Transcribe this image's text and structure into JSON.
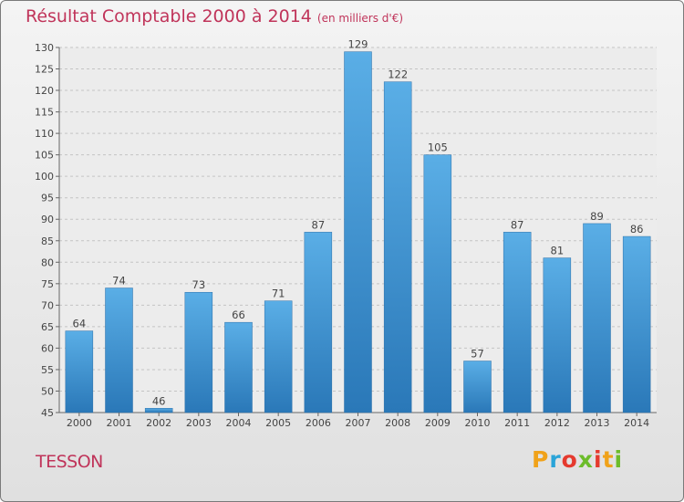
{
  "header": {
    "title": "Résultat Comptable 2000 à 2014",
    "unit": "(en milliers d'€)"
  },
  "commune": "TESSON",
  "logo": {
    "text": "Proxiti"
  },
  "colors": {
    "title": "#c0345a",
    "bar_top": "#5aaee6",
    "bar_bottom": "#2a78b8"
  },
  "chart_data": {
    "type": "bar",
    "title": "Résultat Comptable 2000 à 2014",
    "subtitle": "(en milliers d'€)",
    "xlabel": "",
    "ylabel": "",
    "categories": [
      "2000",
      "2001",
      "2002",
      "2003",
      "2004",
      "2005",
      "2006",
      "2007",
      "2008",
      "2009",
      "2010",
      "2011",
      "2012",
      "2013",
      "2014"
    ],
    "values": [
      64,
      74,
      46,
      73,
      66,
      71,
      87,
      129,
      122,
      105,
      57,
      87,
      81,
      89,
      86
    ],
    "ylim": [
      45,
      130
    ],
    "yticks": [
      45,
      50,
      55,
      60,
      65,
      70,
      75,
      80,
      85,
      90,
      95,
      100,
      105,
      110,
      115,
      120,
      125,
      130
    ],
    "grid": true
  }
}
